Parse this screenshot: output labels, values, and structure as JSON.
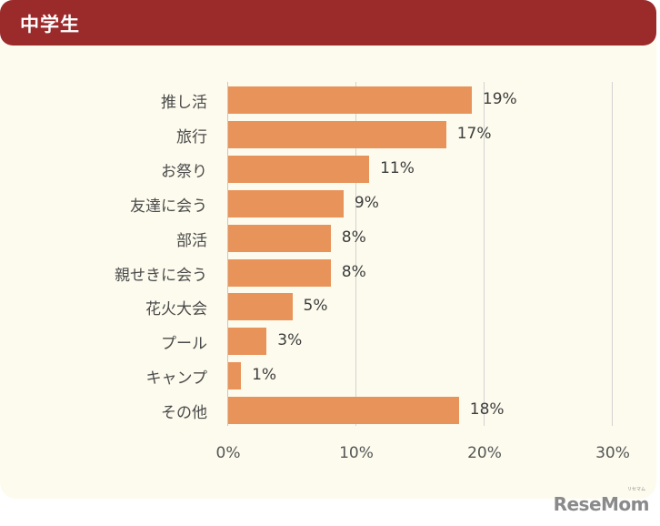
{
  "header": {
    "title": "中学生"
  },
  "chart_data": {
    "type": "bar",
    "orientation": "horizontal",
    "title": "中学生",
    "categories": [
      "推し活",
      "旅行",
      "お祭り",
      "友達に会う",
      "部活",
      "親せきに会う",
      "花火大会",
      "プール",
      "キャンプ",
      "その他"
    ],
    "values": [
      19,
      17,
      11,
      9,
      8,
      8,
      5,
      3,
      1,
      18
    ],
    "value_labels": [
      "19%",
      "17%",
      "11%",
      "9%",
      "8%",
      "8%",
      "5%",
      "3%",
      "1%",
      "18%"
    ],
    "xlabel": "",
    "ylabel": "",
    "xlim": [
      0,
      30
    ],
    "x_ticks": [
      "0%",
      "10%",
      "20%",
      "30%"
    ],
    "grid": true,
    "legend": "none",
    "bar_color": "#e8935a"
  },
  "colors": {
    "header_bg": "#9b2a2b",
    "panel_bg": "#fdfbee",
    "bar": "#e8935a"
  },
  "watermark": {
    "text": "ReseMom",
    "small": "リセマム"
  }
}
